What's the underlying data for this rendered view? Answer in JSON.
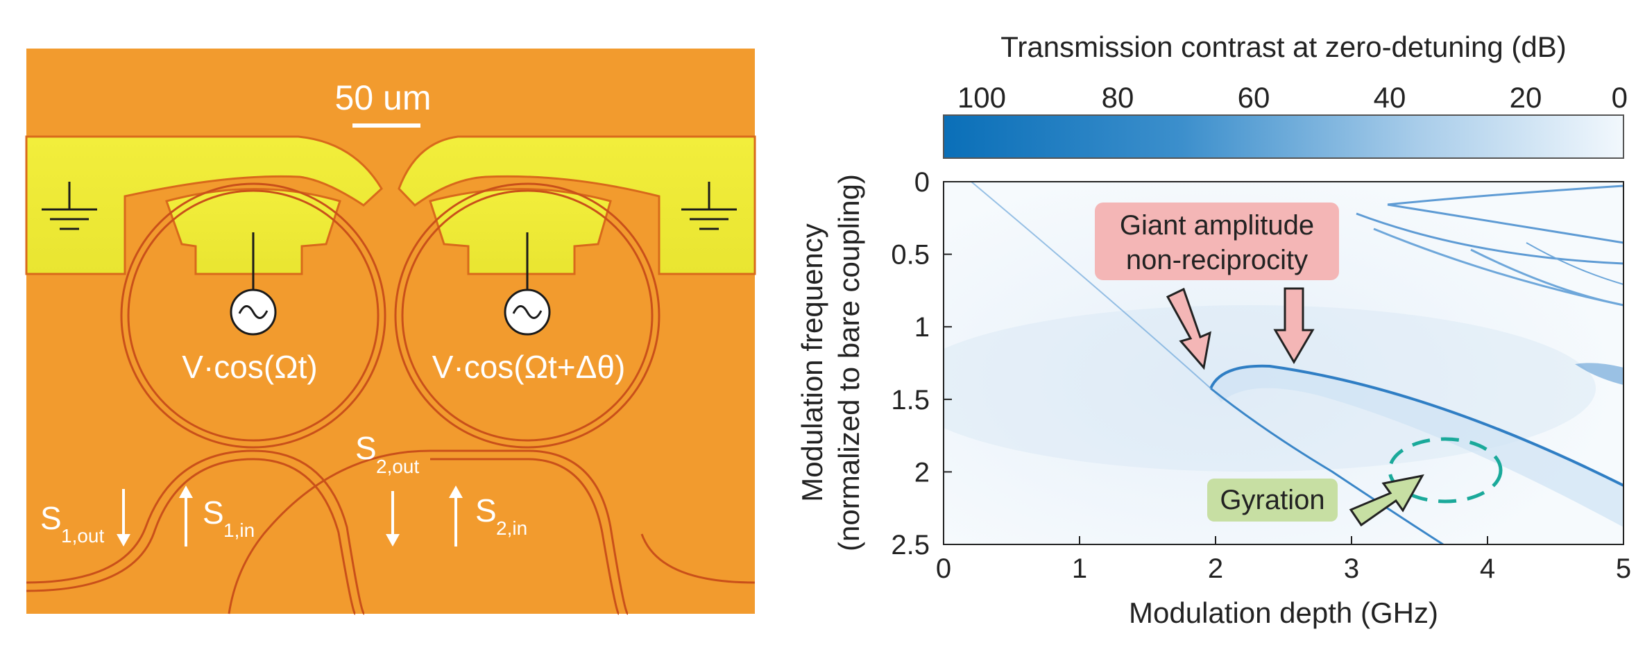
{
  "device": {
    "scale_bar_label": "50 um",
    "drive_left": "V·cos(Ωt)",
    "drive_right": "V·cos(Ωt+Δθ)",
    "port_s1_out": {
      "main": "S",
      "sub": "1,out"
    },
    "port_s1_in": {
      "main": "S",
      "sub": "1,in"
    },
    "port_s2_out": {
      "main": "S",
      "sub": "2,out"
    },
    "port_s2_in": {
      "main": "S",
      "sub": "2,in"
    },
    "source_symbol": "~"
  },
  "chart_data": {
    "type": "heatmap",
    "title": "Transmission contrast at zero-detuning (dB)",
    "xlabel": "Modulation depth (GHz)",
    "ylabel_line1": "Modulation frequency",
    "ylabel_line2": "(normalized to bare coupling)",
    "xlim": [
      0,
      5
    ],
    "ylim": [
      0,
      2.5
    ],
    "y_inverted": true,
    "xticks": [
      0,
      1,
      2,
      3,
      4,
      5
    ],
    "yticks": [
      0,
      0.5,
      1,
      1.5,
      2,
      2.5
    ],
    "colorbar": {
      "range": [
        100,
        0
      ],
      "ticks": [
        100,
        80,
        60,
        40,
        20,
        0
      ],
      "color_high": "#0a6fb8",
      "color_low": "#f2f8fd"
    },
    "annotations": [
      {
        "label_line1": "Giant amplitude",
        "label_line2": "non-reciprocity",
        "color": "#f4b6b6",
        "points_to": [
          [
            1.9,
            1.35
          ],
          [
            2.6,
            1.25
          ]
        ]
      },
      {
        "label": "Gyration",
        "color": "#c7dfa3",
        "points_to": [
          [
            3.55,
            2.05
          ]
        ]
      }
    ],
    "features": [
      {
        "name": "main-resonance-upper",
        "x": [
          2.0,
          2.3,
          2.9,
          3.6,
          4.3,
          5.0
        ],
        "y": [
          1.38,
          1.36,
          1.45,
          1.62,
          1.83,
          2.05
        ]
      },
      {
        "name": "main-resonance-lower",
        "x": [
          1.95,
          2.4,
          2.9,
          3.4,
          3.8
        ],
        "y": [
          1.42,
          1.75,
          2.05,
          2.35,
          2.5
        ]
      }
    ]
  }
}
